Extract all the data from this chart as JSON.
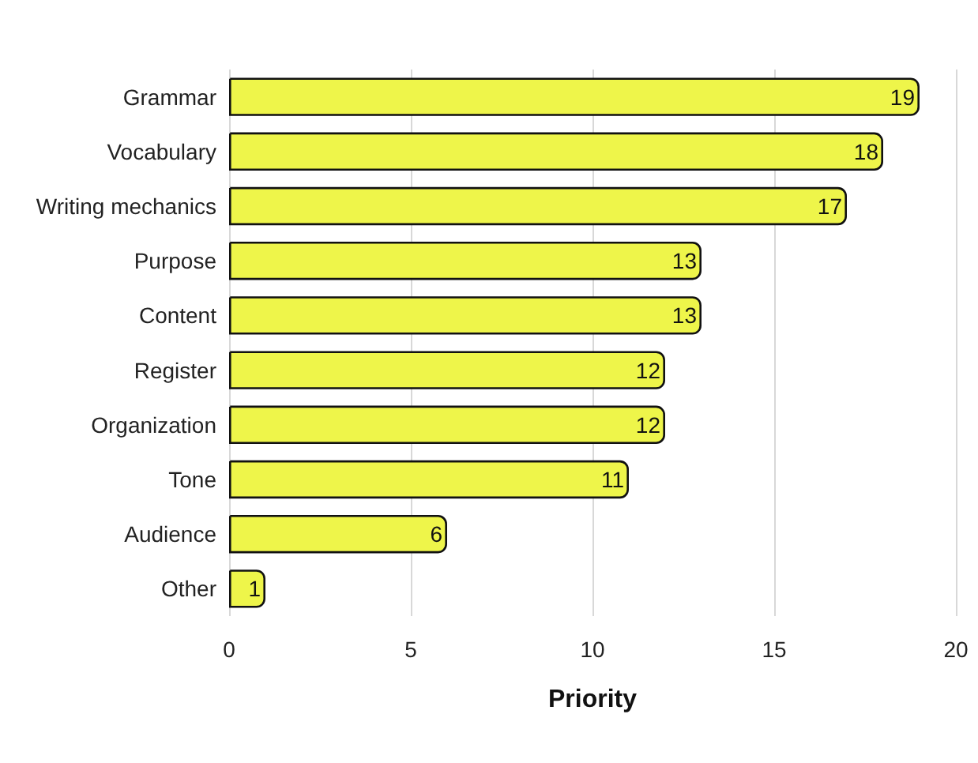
{
  "chart_data": {
    "type": "bar",
    "orientation": "horizontal",
    "xlabel": "Priority",
    "categories": [
      "Grammar",
      "Vocabulary",
      "Writing mechanics",
      "Purpose",
      "Content",
      "Register",
      "Organization",
      "Tone",
      "Audience",
      "Other"
    ],
    "values": [
      19,
      18,
      17,
      13,
      13,
      12,
      12,
      11,
      6,
      1
    ],
    "color": "#eef54a",
    "xlim": [
      0,
      20
    ],
    "xticks": [
      0,
      5,
      10,
      15,
      20
    ],
    "grid": "x",
    "data_labels": true
  }
}
